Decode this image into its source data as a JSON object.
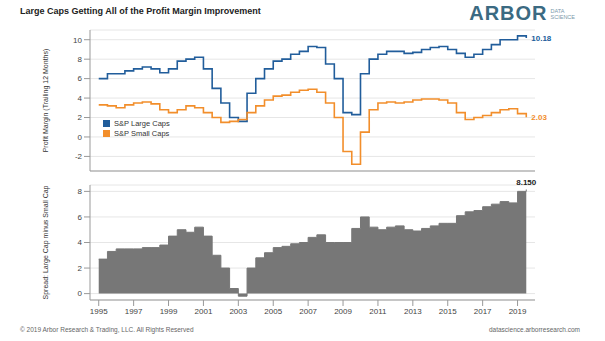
{
  "title": "Large Caps Getting All of the Profit Margin Improvement",
  "brand": {
    "name": "ARBOR",
    "sub": [
      "DATA",
      "SCIENCE"
    ]
  },
  "footer": {
    "left": "© 2019 Arbor Research & Trading, LLC. All Rights Reserved",
    "right": "datascience.arborresearch.com"
  },
  "chart_data": [
    {
      "type": "line",
      "x": [
        1995.0,
        1995.5,
        1996.0,
        1996.5,
        1997.0,
        1997.5,
        1998.0,
        1998.5,
        1999.0,
        1999.5,
        2000.0,
        2000.5,
        2001.0,
        2001.5,
        2002.0,
        2002.5,
        2003.0,
        2003.5,
        2004.0,
        2004.5,
        2005.0,
        2005.5,
        2006.0,
        2006.5,
        2007.0,
        2007.5,
        2008.0,
        2008.5,
        2009.0,
        2009.5,
        2010.0,
        2010.5,
        2011.0,
        2011.5,
        2012.0,
        2012.5,
        2013.0,
        2013.5,
        2014.0,
        2014.5,
        2015.0,
        2015.5,
        2016.0,
        2016.5,
        2017.0,
        2017.5,
        2018.0,
        2018.5,
        2019.0,
        2019.5
      ],
      "series": [
        {
          "name": "S&P Large Caps",
          "color": "#215d9b",
          "values": [
            6.0,
            6.5,
            6.5,
            6.8,
            7.0,
            7.2,
            7.0,
            6.6,
            7.0,
            7.8,
            8.0,
            8.2,
            7.0,
            5.0,
            3.5,
            2.0,
            1.6,
            4.5,
            6.0,
            7.0,
            7.8,
            8.0,
            8.5,
            8.8,
            9.3,
            9.2,
            7.5,
            6.0,
            2.5,
            2.3,
            6.5,
            8.0,
            8.5,
            8.8,
            8.8,
            8.6,
            8.7,
            9.0,
            9.2,
            9.3,
            9.0,
            8.6,
            8.2,
            8.5,
            9.0,
            9.5,
            10.0,
            10.0,
            10.4,
            10.18
          ]
        },
        {
          "name": "S&P Small Caps",
          "color": "#f28e2b",
          "values": [
            3.3,
            3.2,
            3.0,
            3.3,
            3.5,
            3.6,
            3.4,
            2.8,
            2.5,
            2.8,
            3.2,
            3.0,
            2.5,
            2.0,
            1.5,
            1.6,
            1.8,
            2.5,
            3.2,
            3.8,
            4.2,
            4.3,
            4.6,
            4.8,
            4.9,
            4.6,
            3.5,
            2.0,
            -1.5,
            -2.8,
            0.5,
            2.8,
            3.5,
            3.6,
            3.5,
            3.6,
            3.8,
            3.9,
            3.9,
            3.8,
            3.5,
            2.5,
            1.8,
            2.0,
            2.2,
            2.5,
            2.8,
            2.9,
            2.4,
            2.03
          ]
        }
      ],
      "xlim": [
        1994.5,
        2020
      ],
      "ylim": [
        -3.5,
        11
      ],
      "yticks": [
        -2,
        0,
        2,
        4,
        6,
        8,
        10
      ],
      "y_label": "Profit Margin (Trailing 12 Months)",
      "grid": true,
      "legend": "lower left",
      "tick_labels": "y",
      "annotations": [
        {
          "text": "10.18",
          "x": 2019.5,
          "y": 10.18,
          "color": "#215d9b"
        },
        {
          "text": "2.03",
          "x": 2019.5,
          "y": 2.03,
          "color": "#f28e2b"
        }
      ]
    },
    {
      "type": "area",
      "x": [
        1995.0,
        1995.5,
        1996.0,
        1996.5,
        1997.0,
        1997.5,
        1998.0,
        1998.5,
        1999.0,
        1999.5,
        2000.0,
        2000.5,
        2001.0,
        2001.5,
        2002.0,
        2002.5,
        2003.0,
        2003.5,
        2004.0,
        2004.5,
        2005.0,
        2005.5,
        2006.0,
        2006.5,
        2007.0,
        2007.5,
        2008.0,
        2008.5,
        2009.0,
        2009.5,
        2010.0,
        2010.5,
        2011.0,
        2011.5,
        2012.0,
        2012.5,
        2013.0,
        2013.5,
        2014.0,
        2014.5,
        2015.0,
        2015.5,
        2016.0,
        2016.5,
        2017.0,
        2017.5,
        2018.0,
        2018.5,
        2019.0,
        2019.5
      ],
      "values": [
        2.7,
        3.3,
        3.5,
        3.5,
        3.5,
        3.6,
        3.6,
        3.8,
        4.5,
        5.0,
        4.8,
        5.2,
        4.5,
        3.0,
        2.0,
        0.4,
        -0.2,
        2.0,
        2.8,
        3.2,
        3.6,
        3.7,
        3.9,
        4.0,
        4.4,
        4.6,
        4.0,
        4.0,
        4.0,
        5.1,
        6.0,
        5.2,
        5.0,
        5.2,
        5.3,
        5.0,
        4.9,
        5.1,
        5.3,
        5.5,
        5.5,
        6.1,
        6.4,
        6.5,
        6.8,
        7.0,
        7.2,
        7.1,
        8.0,
        8.15
      ],
      "color": "#777777",
      "xlim": [
        1994.5,
        2020
      ],
      "xticks": [
        1995,
        1997,
        1999,
        2001,
        2003,
        2005,
        2007,
        2009,
        2011,
        2013,
        2015,
        2017,
        2019
      ],
      "ylim": [
        -0.5,
        8.5
      ],
      "yticks": [
        0,
        2,
        4,
        6,
        8
      ],
      "y_label": "Spread: Large Cap minus Small Cap",
      "grid": true,
      "annotations": [
        {
          "text": "8.150",
          "x": 2019.5,
          "y": 8.15,
          "color": "#222222"
        }
      ]
    }
  ]
}
